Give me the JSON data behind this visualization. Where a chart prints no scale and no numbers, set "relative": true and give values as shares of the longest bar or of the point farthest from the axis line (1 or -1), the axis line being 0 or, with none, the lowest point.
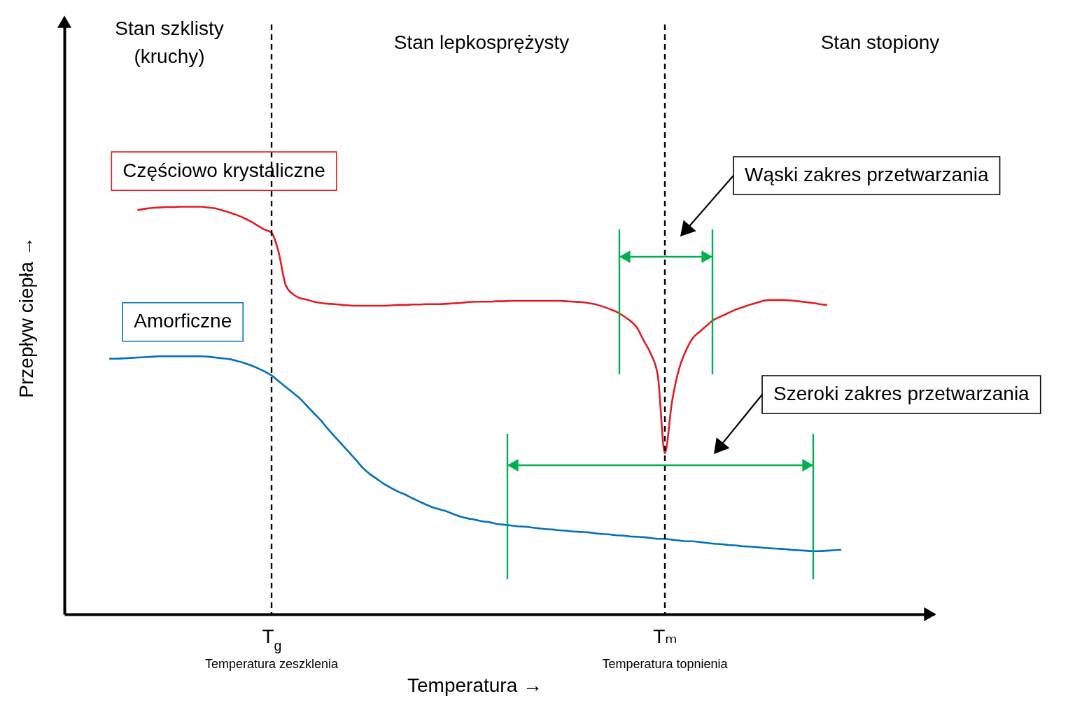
{
  "chart_data": {
    "type": "line",
    "relative": true,
    "xlabel": "Temperatura →",
    "ylabel": "Przepływ ciepła →",
    "categories": [
      null,
      null,
      null,
      null,
      null,
      null,
      null,
      null,
      null,
      null,
      null,
      null,
      null,
      null,
      null,
      null,
      null,
      null,
      null,
      null,
      null,
      null,
      null,
      "T$_{g}$",
      null,
      null,
      null,
      null,
      null,
      null,
      null,
      null,
      null,
      null,
      null,
      null,
      null,
      null,
      null,
      null,
      null,
      null,
      null,
      null,
      null,
      null,
      null,
      null,
      null,
      null,
      null,
      null,
      null,
      null,
      null,
      null,
      null,
      null,
      null,
      null,
      null,
      null,
      null,
      null,
      null,
      null,
      null,
      null,
      null,
      null,
      null,
      null,
      null,
      null,
      null,
      null,
      null,
      null,
      null,
      "Tₘ",
      null,
      null,
      null,
      null,
      null,
      null,
      null,
      null,
      null,
      null,
      null,
      null,
      null,
      null,
      null,
      null,
      null,
      null,
      null,
      null,
      null,
      null,
      null,
      null,
      null
    ],
    "series": [
      {
        "name": "Częściowo krystaliczne",
        "color": "#e31b23",
        "values": [
          null,
          null,
          null,
          null,
          0.992,
          0.995,
          0.997,
          0.998,
          0.999,
          0.999,
          1.0,
          1.0,
          1.0,
          1.0,
          0.998,
          0.996,
          0.991,
          0.986,
          0.98,
          0.973,
          0.964,
          0.954,
          0.944,
          0.936,
          0.889,
          0.808,
          0.786,
          0.776,
          0.772,
          0.767,
          0.764,
          0.762,
          0.761,
          0.759,
          0.758,
          0.757,
          0.757,
          0.757,
          0.757,
          0.757,
          0.758,
          0.759,
          0.759,
          0.76,
          0.76,
          0.761,
          0.761,
          0.761,
          0.762,
          0.763,
          0.764,
          0.766,
          0.767,
          0.767,
          0.767,
          0.768,
          0.768,
          0.769,
          0.769,
          0.769,
          0.769,
          0.769,
          0.769,
          0.769,
          0.769,
          0.768,
          0.767,
          0.766,
          0.764,
          0.761,
          0.756,
          0.75,
          0.743,
          0.733,
          0.721,
          0.704,
          0.671,
          0.639,
          0.585,
          0.395,
          0.52,
          0.601,
          0.647,
          0.678,
          0.694,
          0.709,
          0.723,
          0.731,
          0.739,
          0.747,
          0.753,
          0.759,
          0.764,
          0.769,
          0.771,
          0.771,
          0.771,
          0.77,
          0.768,
          0.766,
          0.764,
          0.761,
          0.759,
          null,
          null
        ]
      },
      {
        "name": "Amorficzne",
        "color": "#0070c0",
        "values": [
          0.627,
          0.627,
          0.628,
          0.629,
          0.63,
          0.631,
          0.632,
          0.633,
          0.633,
          0.633,
          0.633,
          0.633,
          0.633,
          0.633,
          0.632,
          0.63,
          0.628,
          0.626,
          0.622,
          0.617,
          0.611,
          0.604,
          0.596,
          0.586,
          0.572,
          0.558,
          0.544,
          0.53,
          0.512,
          0.494,
          0.476,
          0.455,
          0.436,
          0.417,
          0.398,
          0.379,
          0.359,
          0.344,
          0.332,
          0.32,
          0.31,
          0.301,
          0.294,
          0.285,
          0.277,
          0.269,
          0.262,
          0.257,
          0.252,
          0.245,
          0.239,
          0.235,
          0.232,
          0.228,
          0.226,
          0.222,
          0.22,
          0.218,
          0.216,
          0.215,
          0.213,
          0.211,
          0.209,
          0.208,
          0.206,
          0.205,
          0.203,
          0.202,
          0.201,
          0.199,
          0.197,
          0.196,
          0.194,
          0.193,
          0.191,
          0.19,
          0.189,
          0.187,
          0.185,
          0.185,
          0.183,
          0.181,
          0.179,
          0.179,
          0.177,
          0.175,
          0.173,
          0.172,
          0.17,
          0.169,
          0.167,
          0.166,
          0.165,
          0.163,
          0.162,
          0.161,
          0.16,
          0.158,
          0.157,
          0.156,
          0.155,
          0.155,
          0.156,
          0.157,
          0.158
        ]
      }
    ],
    "ref_lines": [
      {
        "axis": "x",
        "value": "T$_{g}$",
        "color": "#000000",
        "line_style": "dashed"
      },
      {
        "axis": "x",
        "value": "Tₘ",
        "color": "#000000",
        "line_style": "dashed"
      }
    ],
    "annotations": [
      "Stan szklisty\n(kruchy)",
      "Stan lepkosprężysty",
      "Stan stopiony",
      "Temperatura zeszklenia",
      "Temperatura topnienia",
      "Wąski zakres przetwarzania",
      "Szeroki zakres przetwarzania"
    ]
  }
}
